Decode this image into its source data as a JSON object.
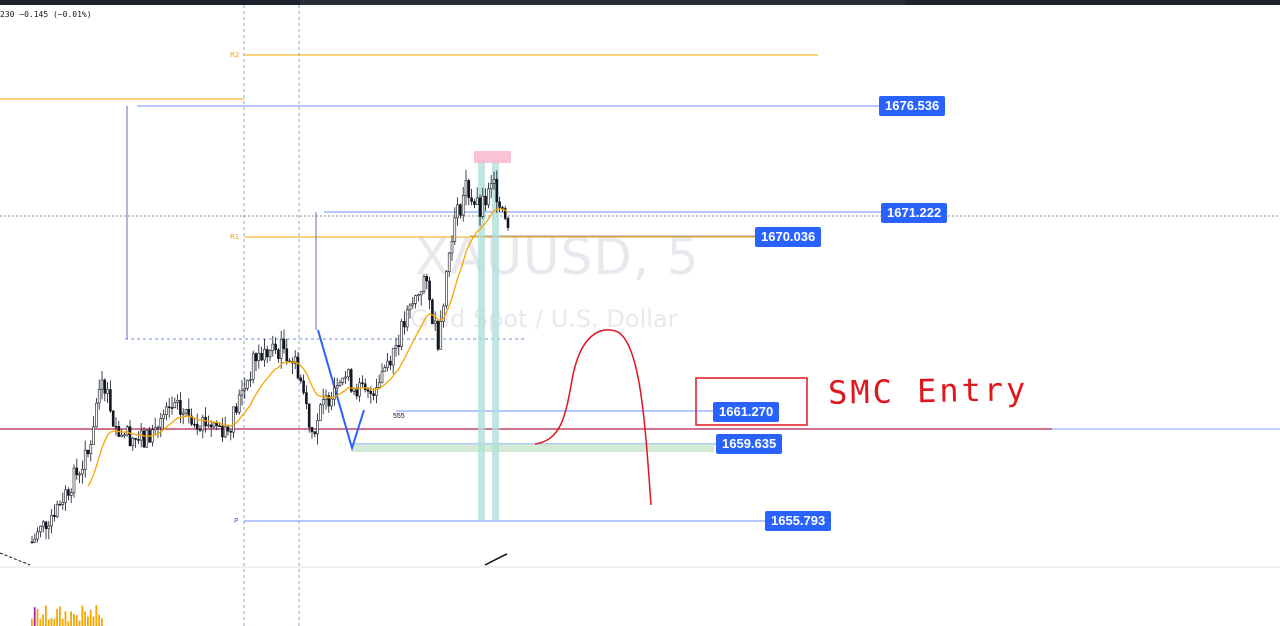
{
  "header": {
    "ohlc_text": "230  −0.145  (−0.01%)"
  },
  "watermark": {
    "symbol": "XAUUSD, 5",
    "description": "Gold Spot / U.S. Dollar"
  },
  "levels": {
    "r2_label": "R2",
    "r1_label": "R1",
    "p_label": "P",
    "count_label": "555"
  },
  "price_tags": [
    {
      "label": "1676.536",
      "value": 1676.536
    },
    {
      "label": "1671.222",
      "value": 1671.222
    },
    {
      "label": "1670.036",
      "value": 1670.036
    },
    {
      "label": "1661.270",
      "value": 1661.27
    },
    {
      "label": "1659.635",
      "value": 1659.635
    },
    {
      "label": "1655.793",
      "value": 1655.793
    }
  ],
  "annotation": {
    "text": "SMC Entry",
    "color": "#e0161d"
  },
  "colors": {
    "up": "#131722",
    "ma": "#f7a600",
    "accent": "#2962ff",
    "horizontal_red": "#b2224a",
    "zone_green": "#c8e6c9",
    "zone_teal": "#b2dfdb",
    "zone_pink": "#f8bbd0"
  },
  "chart_data": {
    "type": "candlestick",
    "symbol": "XAUUSD",
    "timeframe": "5",
    "y_range": [
      1652.5,
      1682.0
    ],
    "price_path": [
      {
        "i": 0,
        "close": 1653.8
      },
      {
        "i": 10,
        "close": 1656.0
      },
      {
        "i": 20,
        "close": 1658.5
      },
      {
        "i": 25,
        "close": 1663.0
      },
      {
        "i": 30,
        "close": 1660.0
      },
      {
        "i": 40,
        "close": 1659.2
      },
      {
        "i": 50,
        "close": 1661.0
      },
      {
        "i": 60,
        "close": 1660.4
      },
      {
        "i": 70,
        "close": 1659.9
      },
      {
        "i": 80,
        "close": 1663.8
      },
      {
        "i": 90,
        "close": 1664.3
      },
      {
        "i": 95,
        "close": 1663.2
      },
      {
        "i": 100,
        "close": 1659.8
      },
      {
        "i": 110,
        "close": 1663.0
      },
      {
        "i": 120,
        "close": 1661.6
      },
      {
        "i": 130,
        "close": 1664.5
      },
      {
        "i": 140,
        "close": 1668.0
      },
      {
        "i": 145,
        "close": 1664.8
      },
      {
        "i": 150,
        "close": 1670.6
      },
      {
        "i": 155,
        "close": 1673.0
      },
      {
        "i": 160,
        "close": 1671.6
      },
      {
        "i": 165,
        "close": 1673.1
      },
      {
        "i": 170,
        "close": 1671.2
      }
    ],
    "volume_note": "volume histogram at bottom"
  }
}
